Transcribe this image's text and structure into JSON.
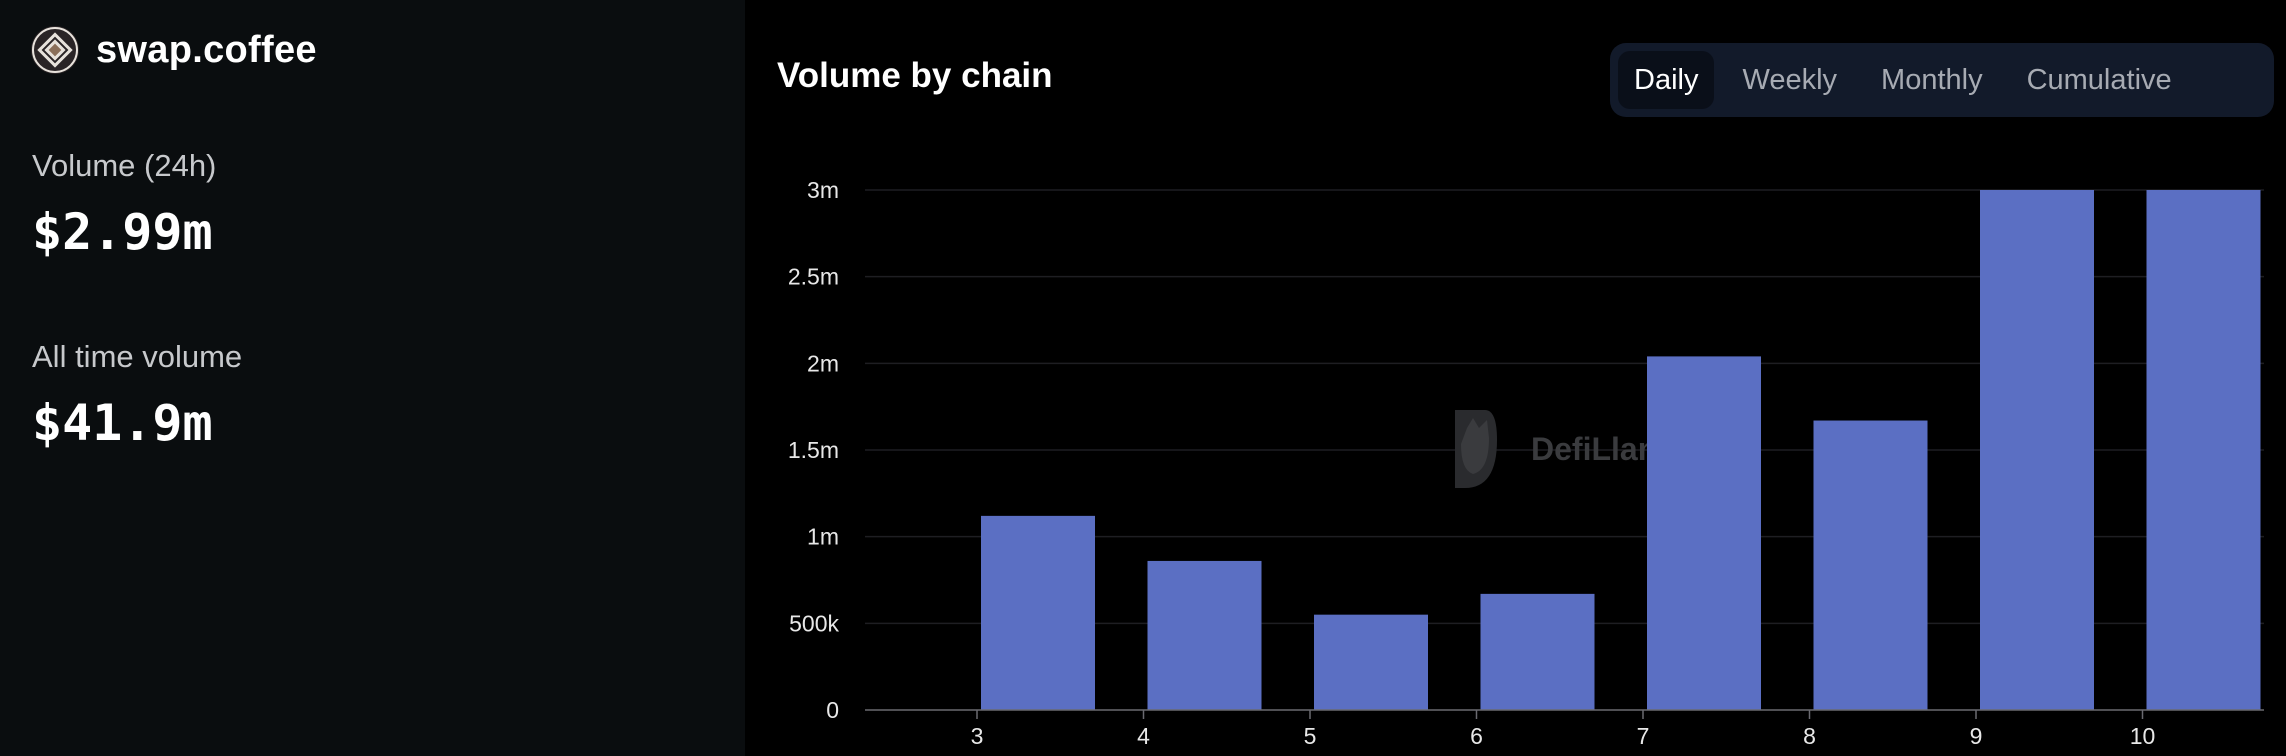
{
  "brand": {
    "name": "swap.coffee",
    "logo_icon": "swap-coffee-logo-icon"
  },
  "stats": [
    {
      "label": "Volume (24h)",
      "value": "$2.99m"
    },
    {
      "label": "All time volume",
      "value": "$41.9m"
    }
  ],
  "chart_panel": {
    "title": "Volume by chain",
    "tabs": [
      {
        "label": "Daily",
        "active": true
      },
      {
        "label": "Weekly",
        "active": false
      },
      {
        "label": "Monthly",
        "active": false
      },
      {
        "label": "Cumulative",
        "active": false
      }
    ],
    "watermark": "DefiLlama"
  },
  "chart_data": {
    "type": "bar",
    "title": "Volume by chain",
    "categories": [
      "3",
      "4",
      "5",
      "6",
      "7",
      "8",
      "9",
      "10"
    ],
    "values": [
      1120000,
      860000,
      550000,
      670000,
      2040000,
      1670000,
      3000000,
      3000000
    ],
    "yticks": [
      0,
      500000,
      1000000,
      1500000,
      2000000,
      2500000,
      3000000
    ],
    "yticklabels": [
      "0",
      "500k",
      "1m",
      "1.5m",
      "2m",
      "2.5m",
      "3m"
    ],
    "ylim": [
      0,
      3000000
    ],
    "grid": true,
    "legend": "none",
    "colors": {
      "bar": "#5b6fc3",
      "background": "#000000"
    }
  }
}
